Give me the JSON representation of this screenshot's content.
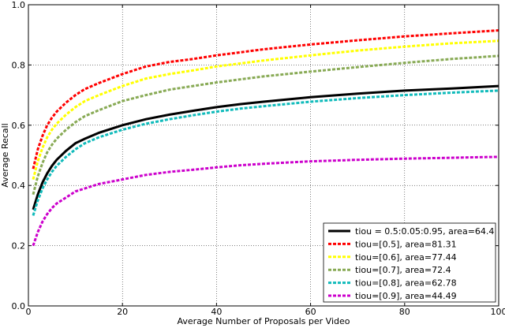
{
  "chart_data": {
    "type": "line",
    "title": "",
    "xlabel": "Average Number of Proposals per Video",
    "ylabel": "Average Recall",
    "xlim": [
      0,
      100
    ],
    "ylim": [
      0.0,
      1.0
    ],
    "xticks": [
      "0",
      "20",
      "40",
      "60",
      "80",
      "100"
    ],
    "yticks": [
      "0.0",
      "0.2",
      "0.4",
      "0.6",
      "0.8",
      "1.0"
    ],
    "grid": true,
    "legend_position": "bottom-right",
    "x": [
      1,
      2,
      3,
      4,
      5,
      6,
      8,
      10,
      12,
      15,
      20,
      25,
      30,
      35,
      40,
      45,
      50,
      60,
      70,
      80,
      90,
      100
    ],
    "series": [
      {
        "name": "tiou = 0.5:0.05:0.95, area=64.4",
        "color": "#000000",
        "style": "solid",
        "values": [
          0.32,
          0.37,
          0.41,
          0.44,
          0.465,
          0.485,
          0.515,
          0.54,
          0.555,
          0.575,
          0.6,
          0.62,
          0.635,
          0.648,
          0.66,
          0.67,
          0.678,
          0.693,
          0.705,
          0.715,
          0.722,
          0.73
        ]
      },
      {
        "name": "tiou=[0.5], area=81.31",
        "color": "#ff0000",
        "style": "dashed",
        "values": [
          0.455,
          0.52,
          0.565,
          0.6,
          0.625,
          0.645,
          0.675,
          0.7,
          0.72,
          0.74,
          0.77,
          0.795,
          0.81,
          0.82,
          0.832,
          0.842,
          0.852,
          0.868,
          0.882,
          0.895,
          0.905,
          0.915
        ]
      },
      {
        "name": "tiou=[0.6], area=77.44",
        "color": "#ffff00",
        "style": "dashed",
        "values": [
          0.42,
          0.48,
          0.525,
          0.56,
          0.585,
          0.605,
          0.635,
          0.66,
          0.68,
          0.7,
          0.73,
          0.755,
          0.77,
          0.782,
          0.795,
          0.805,
          0.815,
          0.832,
          0.848,
          0.861,
          0.872,
          0.88
        ]
      },
      {
        "name": "tiou=[0.7], area=72.4",
        "color": "#88aa55",
        "style": "dashed",
        "values": [
          0.37,
          0.43,
          0.475,
          0.51,
          0.535,
          0.555,
          0.585,
          0.61,
          0.63,
          0.65,
          0.68,
          0.7,
          0.718,
          0.73,
          0.742,
          0.752,
          0.762,
          0.778,
          0.793,
          0.807,
          0.82,
          0.83
        ]
      },
      {
        "name": "tiou=[0.8], area=62.78",
        "color": "#11bbbb",
        "style": "dashed",
        "values": [
          0.3,
          0.35,
          0.39,
          0.42,
          0.445,
          0.465,
          0.495,
          0.52,
          0.54,
          0.56,
          0.585,
          0.605,
          0.62,
          0.633,
          0.645,
          0.655,
          0.663,
          0.678,
          0.69,
          0.7,
          0.708,
          0.715
        ]
      },
      {
        "name": "tiou=[0.9], area=44.49",
        "color": "#cc00cc",
        "style": "dashed",
        "values": [
          0.2,
          0.245,
          0.28,
          0.305,
          0.325,
          0.34,
          0.36,
          0.38,
          0.39,
          0.405,
          0.42,
          0.435,
          0.445,
          0.452,
          0.46,
          0.467,
          0.472,
          0.48,
          0.485,
          0.489,
          0.492,
          0.495
        ]
      }
    ]
  }
}
